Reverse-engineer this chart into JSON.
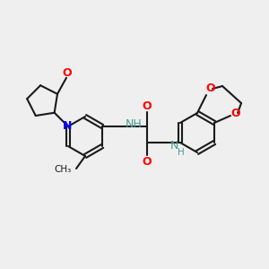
{
  "background_color": "#efefef",
  "bond_color": "#1a1a1a",
  "bond_width": 1.5,
  "atom_colors": {
    "O": "#ff0000",
    "N": "#0000ff",
    "NH": "#4a9999",
    "C": "#1a1a1a"
  },
  "font_size_atom": 9,
  "font_size_small": 7.5
}
